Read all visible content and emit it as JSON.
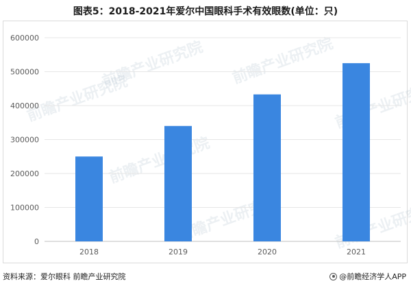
{
  "title": "图表5：2018-2021年爱尔中国眼科手术有效眼数(单位：只)",
  "chart_data": {
    "type": "bar",
    "categories": [
      "2018",
      "2019",
      "2020",
      "2021"
    ],
    "values": [
      250000,
      340000,
      433000,
      525000
    ],
    "yticks": [
      "0",
      "100000",
      "200000",
      "300000",
      "400000",
      "500000",
      "600000"
    ],
    "ylim": [
      0,
      600000
    ],
    "bar_color": "#3a86e0",
    "grid": true
  },
  "footer": {
    "source": "资料来源：爱尔眼科 前瞻产业研究院",
    "brand": "@前瞻经济学人APP"
  },
  "watermark": "前瞻产业研究院"
}
